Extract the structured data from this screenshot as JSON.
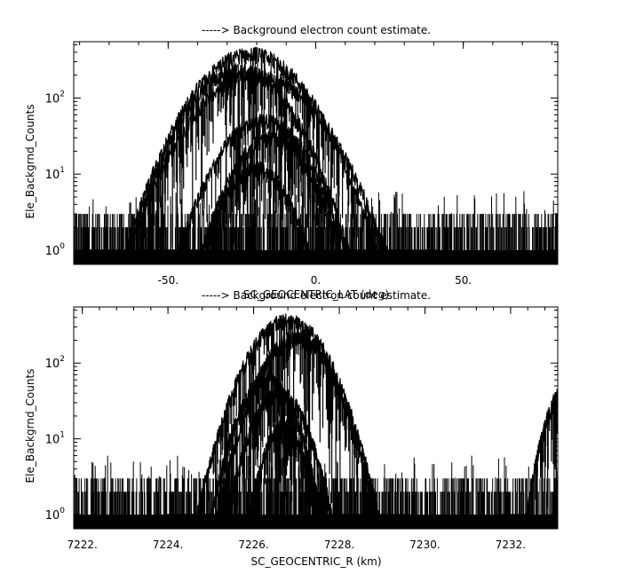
{
  "chart_data": [
    {
      "type": "line",
      "title": "-----> Background electron count estimate.",
      "xlabel": "SC_GEOCENTRIC_LAT (deg)",
      "ylabel": "Ele_Backgrnd_Counts",
      "xlim": [
        -82,
        82
      ],
      "ylim": [
        0.65,
        550
      ],
      "yscale": "log",
      "x_ticks": [
        {
          "value": -50,
          "label": "-50."
        },
        {
          "value": 0,
          "label": "0."
        },
        {
          "value": 50,
          "label": "50."
        }
      ],
      "y_ticks": [
        {
          "value": 1,
          "base": "10",
          "exp": "0"
        },
        {
          "value": 10,
          "base": "10",
          "exp": "1"
        },
        {
          "value": 100,
          "base": "10",
          "exp": "2"
        }
      ],
      "noise_floor": {
        "x_range": [
          -82,
          82
        ],
        "max_count": 3,
        "spikes_to": 6
      },
      "series": [
        {
          "peak_x": -22,
          "peak_y": 380,
          "width": 22
        },
        {
          "peak_x": -26,
          "peak_y": 240,
          "width": 20
        },
        {
          "peak_x": -20,
          "peak_y": 200,
          "width": 24
        },
        {
          "peak_x": -18,
          "peak_y": 50,
          "width": 18
        },
        {
          "peak_x": -15,
          "peak_y": 30,
          "width": 16
        },
        {
          "peak_x": -20,
          "peak_y": 12,
          "width": 14
        }
      ],
      "color": "#000000",
      "grid": false
    },
    {
      "type": "line",
      "title": "-----> Background electron count estimate.",
      "xlabel": "SC_GEOCENTRIC_R (km)",
      "ylabel": "Ele_Backgrnd_Counts",
      "xlim": [
        7221.8,
        7233.1
      ],
      "ylim": [
        0.65,
        550
      ],
      "yscale": "log",
      "x_ticks": [
        {
          "value": 7222,
          "label": "7222."
        },
        {
          "value": 7224,
          "label": "7224."
        },
        {
          "value": 7226,
          "label": "7226."
        },
        {
          "value": 7228,
          "label": "7228."
        },
        {
          "value": 7230,
          "label": "7230."
        },
        {
          "value": 7232,
          "label": "7232."
        }
      ],
      "y_ticks": [
        {
          "value": 1,
          "base": "10",
          "exp": "0"
        },
        {
          "value": 10,
          "base": "10",
          "exp": "1"
        },
        {
          "value": 100,
          "base": "10",
          "exp": "2"
        }
      ],
      "noise_floor": {
        "x_range": [
          7221.8,
          7233.1
        ],
        "max_count": 3,
        "spikes_to": 6
      },
      "series": [
        {
          "peak_x": 7226.8,
          "peak_y": 370,
          "width": 1.1
        },
        {
          "peak_x": 7227.0,
          "peak_y": 220,
          "width": 1.0
        },
        {
          "peak_x": 7226.3,
          "peak_y": 60,
          "width": 0.8
        },
        {
          "peak_x": 7226.6,
          "peak_y": 40,
          "width": 0.8
        },
        {
          "peak_x": 7226.7,
          "peak_y": 15,
          "width": 0.6
        },
        {
          "peak_x": 7233.3,
          "peak_y": 45,
          "width": 0.6
        }
      ],
      "color": "#000000",
      "grid": false
    }
  ]
}
